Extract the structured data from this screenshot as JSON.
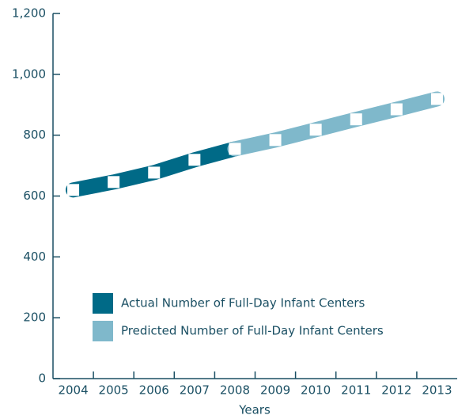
{
  "chart_data": {
    "type": "line",
    "categories": [
      "2004",
      "2005",
      "2006",
      "2007",
      "2008",
      "2009",
      "2010",
      "2011",
      "2012",
      "2013"
    ],
    "series": [
      {
        "name": "Actual Number of Full-Day Infant Centers",
        "color": "#006a87",
        "values": [
          620,
          646,
          677,
          719,
          755,
          null,
          null,
          null,
          null,
          null
        ]
      },
      {
        "name": "Predicted Number of Full-Day Infant Centers",
        "color": "#7fb8cb",
        "values": [
          null,
          null,
          null,
          null,
          755,
          784,
          818,
          852,
          885,
          919
        ]
      }
    ],
    "x_label": "Years",
    "ylim": [
      0,
      1200
    ],
    "yticks": [
      0,
      200,
      400,
      600,
      800,
      {
        "value": 1000,
        "label": "1,000"
      },
      {
        "value": 1200,
        "label": "1,200"
      }
    ]
  }
}
